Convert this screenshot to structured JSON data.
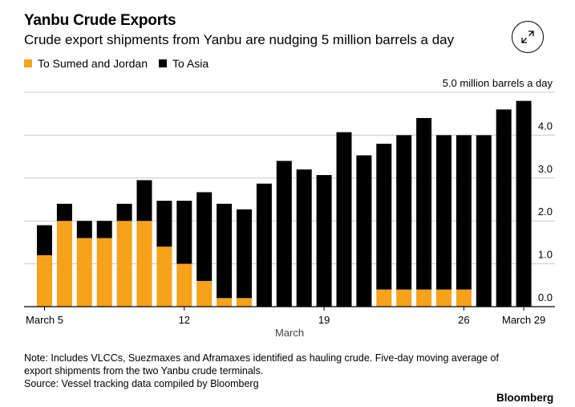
{
  "header": {
    "title": "Yanbu Crude Exports",
    "subtitle": "Crude export shipments from Yanbu are nudging 5 million barrels a day"
  },
  "expand_icon": "expand-arrows-icon",
  "chart_data": {
    "type": "bar",
    "stacked": true,
    "categories": [
      "March 5",
      "6",
      "7",
      "8",
      "9",
      "10",
      "11",
      "12",
      "13",
      "14",
      "15",
      "16",
      "17",
      "18",
      "19",
      "20",
      "21",
      "22",
      "23",
      "24",
      "25",
      "26",
      "27",
      "28",
      "March 29"
    ],
    "series": [
      {
        "name": "To Sumed and Jordan",
        "color": "#f7a21b",
        "values": [
          1.2,
          2.0,
          1.6,
          1.6,
          2.0,
          2.0,
          1.4,
          1.0,
          0.6,
          0.2,
          0.2,
          0,
          0,
          0,
          0,
          0,
          0,
          0.4,
          0.4,
          0.4,
          0.4,
          0.4,
          0,
          0,
          0
        ]
      },
      {
        "name": "To Asia",
        "color": "#000000",
        "values": [
          0.7,
          0.4,
          0.4,
          0.4,
          0.4,
          0.95,
          1.07,
          1.47,
          2.07,
          2.2,
          2.07,
          2.87,
          3.4,
          3.2,
          3.07,
          4.07,
          3.53,
          3.4,
          3.6,
          4.0,
          3.6,
          3.6,
          4.0,
          4.6,
          4.8
        ]
      }
    ],
    "xtick_labels": [
      {
        "index": 0,
        "label": "March 5"
      },
      {
        "index": 7,
        "label": "12"
      },
      {
        "index": 14,
        "label": "19"
      },
      {
        "index": 21,
        "label": "26"
      },
      {
        "index": 24,
        "label": "March 29"
      }
    ],
    "xlabel": "March",
    "ylabel": "",
    "ylim": [
      0,
      5
    ],
    "yticks": [
      0,
      1,
      2,
      3,
      4,
      5
    ],
    "ytick_labels": [
      "0.0",
      "1.0",
      "2.0",
      "3.0",
      "4.0",
      "5.0 million barrels a day"
    ],
    "grid": true,
    "legend_position": "top-left"
  },
  "footer": {
    "note_line1": "Note: Includes VLCCs, Suezmaxes and Aframaxes identified as hauling crude. Five-day moving average of",
    "note_line2": "export shipments from the two Yanbu crude terminals.",
    "source": "Source: Vessel tracking data compiled by Bloomberg",
    "brand": "Bloomberg"
  }
}
